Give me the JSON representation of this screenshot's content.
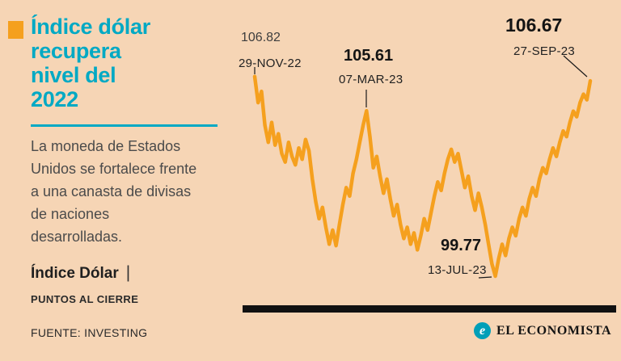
{
  "accent": {
    "teal": "#00a9c4",
    "orange": "#f5a01e",
    "background": "#f6d5b5",
    "text_dark": "#1f1f1f"
  },
  "header": {
    "title_lines": [
      "Índice dólar",
      "recupera",
      "nivel del",
      "2022"
    ]
  },
  "description": "La moneda de Estados Unidos se fortalece frente a una canasta de divisas de naciones desarrolladas.",
  "series_label": "Índice Dólar",
  "series_separator": "|",
  "units_label": "PUNTOS AL CIERRE",
  "source": "FUENTE: INVESTING",
  "brand": {
    "icon": "e",
    "name": "EL ECONOMISTA"
  },
  "annotations": [
    {
      "value": "106.82",
      "date": "29-NOV-22"
    },
    {
      "value": "105.61",
      "date": "07-MAR-23"
    },
    {
      "value": "99.77",
      "date": "13-JUL-23"
    },
    {
      "value": "106.67",
      "date": "27-SEP-23"
    }
  ],
  "chart_data": {
    "type": "line",
    "title": "Índice dólar recupera nivel del 2022",
    "ylabel": "Puntos al cierre",
    "x_range": [
      "29-NOV-22",
      "27-SEP-23"
    ],
    "ylim": [
      99.4,
      107.1
    ],
    "grid": false,
    "legend": "none",
    "key_points": [
      {
        "date": "29-NOV-22",
        "value": 106.82
      },
      {
        "date": "07-MAR-23",
        "value": 105.61
      },
      {
        "date": "13-JUL-23",
        "value": 99.77
      },
      {
        "date": "27-SEP-23",
        "value": 106.67
      }
    ],
    "series": [
      {
        "name": "Índice Dólar",
        "color": "#f5a01e",
        "values": [
          106.82,
          105.9,
          106.3,
          105.1,
          104.5,
          105.2,
          104.4,
          104.8,
          104.1,
          103.8,
          104.5,
          104.0,
          103.7,
          104.3,
          103.9,
          104.6,
          104.2,
          103.2,
          102.4,
          101.8,
          102.2,
          101.5,
          100.9,
          101.4,
          100.85,
          101.6,
          102.3,
          102.9,
          102.6,
          103.4,
          103.9,
          104.5,
          105.1,
          105.61,
          104.7,
          103.6,
          104.0,
          103.3,
          102.7,
          103.2,
          102.5,
          101.9,
          102.3,
          101.6,
          101.1,
          101.5,
          100.9,
          101.3,
          100.7,
          101.2,
          101.8,
          101.4,
          102.0,
          102.6,
          103.1,
          102.8,
          103.4,
          103.9,
          104.25,
          103.8,
          104.1,
          103.5,
          102.9,
          103.3,
          102.6,
          102.1,
          102.7,
          102.2,
          101.6,
          100.9,
          100.2,
          99.77,
          100.4,
          100.9,
          100.5,
          101.1,
          101.5,
          101.2,
          101.8,
          102.2,
          101.9,
          102.5,
          102.9,
          102.6,
          103.2,
          103.6,
          103.4,
          103.9,
          104.3,
          104.0,
          104.5,
          104.9,
          104.7,
          105.2,
          105.6,
          105.4,
          105.9,
          106.2,
          106.0,
          106.67
        ]
      }
    ]
  }
}
